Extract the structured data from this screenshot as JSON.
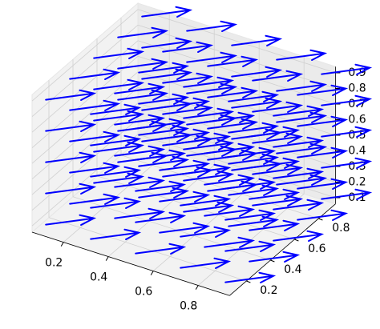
{
  "chart_data": {
    "type": "quiver3d",
    "color": "#0000ff",
    "x": [
      0.1,
      0.3,
      0.5,
      0.7,
      0.9
    ],
    "y": [
      0.1,
      0.3,
      0.5,
      0.7,
      0.9
    ],
    "z": [
      0.1,
      0.3,
      0.5,
      0.7,
      0.9
    ],
    "u": 0.15,
    "v": 0.12,
    "w": 0.03,
    "xlim": [
      0.06,
      0.94
    ],
    "ylim": [
      0.06,
      0.94
    ],
    "zlim": [
      0.06,
      0.94
    ],
    "xticks": [
      0.2,
      0.4,
      0.6,
      0.8
    ],
    "yticks": [
      0.2,
      0.4,
      0.6,
      0.8
    ],
    "zticks": [
      0.1,
      0.2,
      0.3,
      0.4,
      0.5,
      0.6,
      0.7,
      0.8,
      0.9
    ],
    "grid": true
  }
}
